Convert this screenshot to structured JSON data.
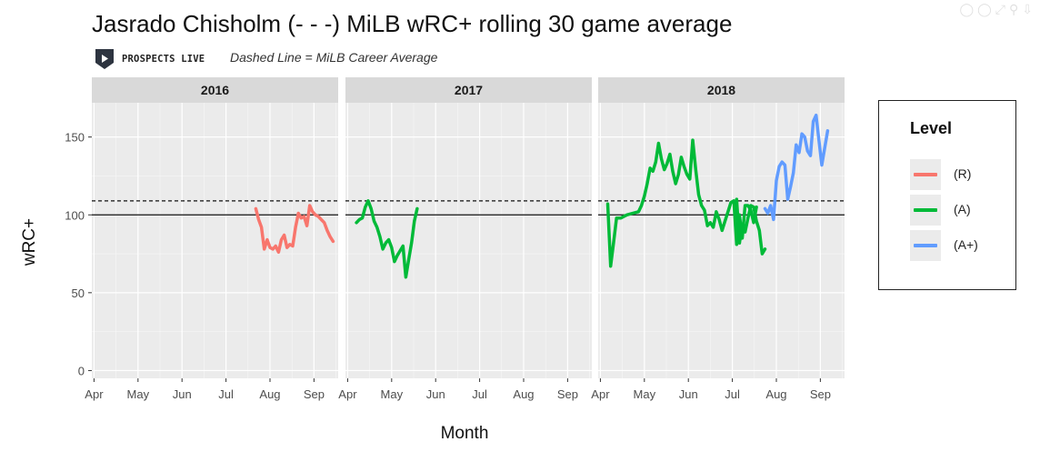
{
  "title": "Jasrado Chisholm (- - -) MiLB wRC+ rolling 30 game average",
  "brand": {
    "name": "PROSPECTS LIVE",
    "logo_icon": "play-shield-icon"
  },
  "subtitle": "Dashed Line = MiLB Career Average",
  "toolbar": {
    "icons": [
      "comment-icon",
      "zoom-icon",
      "fullscreen-icon",
      "search-icon",
      "download-icon"
    ]
  },
  "legend": {
    "title": "Level",
    "items": [
      {
        "label": "(R)",
        "color": "#F8766D"
      },
      {
        "label": "(A)",
        "color": "#00BA38"
      },
      {
        "label": "(A+)",
        "color": "#619CFF"
      }
    ]
  },
  "chart_data": {
    "type": "line",
    "xlabel": "Month",
    "ylabel": "wRC+",
    "ylim": [
      -5,
      172
    ],
    "yticks": [
      0,
      50,
      100,
      150
    ],
    "x_tick_labels": [
      "Apr",
      "May",
      "Jun",
      "Jul",
      "Aug",
      "Sep"
    ],
    "xlim_months": [
      3.95,
      9.55
    ],
    "reference_lines": [
      {
        "value": 100,
        "style": "solid"
      },
      {
        "value": 109,
        "style": "dashed",
        "label": "MiLB Career Average"
      }
    ],
    "grid": true,
    "legend_position": "right",
    "facets": [
      {
        "label": "2016",
        "series": [
          {
            "level": "(R)",
            "color": "#F8766D",
            "x": [
              "2016-07-22",
              "2016-07-24",
              "2016-07-26",
              "2016-07-28",
              "2016-07-30",
              "2016-08-01",
              "2016-08-03",
              "2016-08-05",
              "2016-08-07",
              "2016-08-09",
              "2016-08-11",
              "2016-08-13",
              "2016-08-15",
              "2016-08-17",
              "2016-08-19",
              "2016-08-21",
              "2016-08-23",
              "2016-08-25",
              "2016-08-27",
              "2016-08-29",
              "2016-08-31",
              "2016-09-02",
              "2016-09-04",
              "2016-09-06",
              "2016-09-08",
              "2016-09-10",
              "2016-09-12",
              "2016-09-14"
            ],
            "y": [
              104,
              97,
              92,
              78,
              84,
              79,
              78,
              80,
              76,
              84,
              87,
              79,
              81,
              80,
              92,
              101,
              98,
              99,
              93,
              106,
              102,
              100,
              99,
              97,
              95,
              90,
              86,
              83
            ]
          }
        ]
      },
      {
        "label": "2017",
        "series": [
          {
            "level": "(A)",
            "color": "#00BA38",
            "x": [
              "2017-04-07",
              "2017-04-09",
              "2017-04-11",
              "2017-04-13",
              "2017-04-15",
              "2017-04-17",
              "2017-04-19",
              "2017-04-21",
              "2017-04-23",
              "2017-04-25",
              "2017-04-27",
              "2017-04-29",
              "2017-05-01",
              "2017-05-03",
              "2017-05-05",
              "2017-05-07",
              "2017-05-09",
              "2017-05-11",
              "2017-05-13",
              "2017-05-15",
              "2017-05-17",
              "2017-05-19"
            ],
            "y": [
              95,
              97,
              98,
              105,
              109,
              104,
              96,
              92,
              86,
              78,
              82,
              84,
              79,
              70,
              74,
              77,
              80,
              60,
              71,
              82,
              96,
              104
            ]
          }
        ]
      },
      {
        "label": "2018",
        "series": [
          {
            "level": "(A)",
            "color": "#00BA38",
            "x": [
              "2018-04-06",
              "2018-04-08",
              "2018-04-10",
              "2018-04-12",
              "2018-04-15",
              "2018-04-19",
              "2018-04-23",
              "2018-04-27",
              "2018-04-29",
              "2018-05-01",
              "2018-05-03",
              "2018-05-05",
              "2018-05-07",
              "2018-05-09",
              "2018-05-11",
              "2018-05-13",
              "2018-05-15",
              "2018-05-17",
              "2018-05-19",
              "2018-05-21",
              "2018-05-23",
              "2018-05-25",
              "2018-05-27",
              "2018-05-29",
              "2018-05-31",
              "2018-06-02",
              "2018-06-04",
              "2018-06-06",
              "2018-06-08",
              "2018-06-10",
              "2018-06-12",
              "2018-06-14",
              "2018-06-16",
              "2018-06-18",
              "2018-06-20",
              "2018-06-22",
              "2018-06-24",
              "2018-06-26",
              "2018-06-28",
              "2018-06-30",
              "2018-07-02",
              "2018-07-04",
              "2018-07-06",
              "2018-07-08",
              "2018-07-10",
              "2018-07-12",
              "2018-07-14",
              "2018-07-16",
              "2018-07-18"
            ],
            "y": [
              107,
              67,
              82,
              98,
              98,
              100,
              101,
              102,
              106,
              112,
              120,
              130,
              128,
              134,
              146,
              136,
              129,
              133,
              139,
              128,
              120,
              126,
              137,
              131,
              126,
              123,
              148,
              129,
              113,
              106,
              103,
              93,
              95,
              92,
              102,
              97,
              90,
              96,
              102,
              108,
              109,
              81,
              100,
              85,
              106,
              106,
              103,
              95,
              105
            ]
          },
          {
            "level": "(A)",
            "color": "#00BA38",
            "x": [
              "2018-07-04",
              "2018-07-06"
            ],
            "y": [
              110,
              82
            ]
          },
          {
            "level": "(A)",
            "color": "#00BA38",
            "x": [
              "2018-07-06",
              "2018-07-08",
              "2018-07-10",
              "2018-07-12",
              "2018-07-14",
              "2018-07-16",
              "2018-07-18",
              "2018-07-20",
              "2018-07-22",
              "2018-07-24"
            ],
            "y": [
              82,
              93,
              89,
              98,
              106,
              105,
              96,
              90,
              75,
              78
            ]
          },
          {
            "level": "(A+)",
            "color": "#619CFF",
            "x": [
              "2018-07-24",
              "2018-07-26",
              "2018-07-28",
              "2018-07-30",
              "2018-08-01",
              "2018-08-03",
              "2018-08-05",
              "2018-08-07",
              "2018-08-09",
              "2018-08-11",
              "2018-08-13",
              "2018-08-15",
              "2018-08-17",
              "2018-08-19",
              "2018-08-21",
              "2018-08-23",
              "2018-08-25",
              "2018-08-27",
              "2018-08-29",
              "2018-08-31",
              "2018-09-02",
              "2018-09-04",
              "2018-09-06"
            ],
            "y": [
              104,
              101,
              106,
              97,
              122,
              131,
              134,
              132,
              110,
              118,
              127,
              145,
              140,
              152,
              150,
              141,
              138,
              160,
              164,
              148,
              132,
              143,
              154
            ]
          }
        ]
      }
    ]
  }
}
